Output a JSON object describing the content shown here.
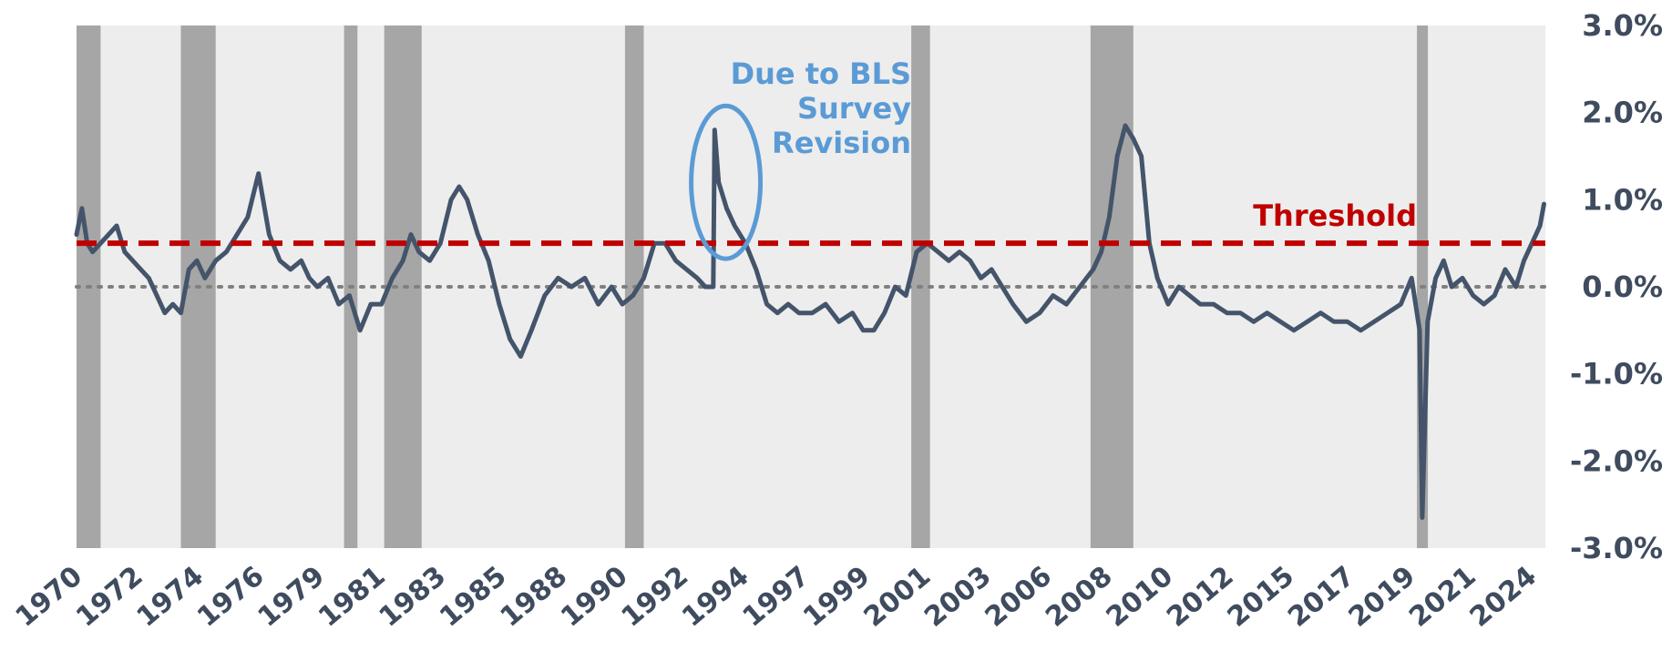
{
  "chart_data": {
    "type": "line",
    "title": "",
    "xlabel": "",
    "ylabel": "",
    "ylim": [
      -3.0,
      3.0
    ],
    "xlim": [
      1970.0,
      2024.9
    ],
    "y_ticks": [
      "3.0%",
      "2.0%",
      "1.0%",
      "0.0%",
      "-1.0%",
      "-2.0%",
      "-3.0%"
    ],
    "y_tick_values": [
      3.0,
      2.0,
      1.0,
      0.0,
      -1.0,
      -2.0,
      -3.0
    ],
    "x_ticks": [
      "1970",
      "1972",
      "1974",
      "1976",
      "1979",
      "1981",
      "1983",
      "1985",
      "1988",
      "1990",
      "1992",
      "1994",
      "1997",
      "1999",
      "2001",
      "2003",
      "2006",
      "2008",
      "2010",
      "2012",
      "2015",
      "2017",
      "2019",
      "2021",
      "2024"
    ],
    "threshold": {
      "value": 0.5,
      "label": "Threshold",
      "color": "#c00000"
    },
    "zero_line": {
      "value": 0.0,
      "color": "#808080"
    },
    "annotation": {
      "lines": [
        "Due to BLS",
        "Survey",
        "Revision"
      ],
      "x": 1994.2,
      "y": 1.2,
      "color": "#5b9bd5"
    },
    "recessions": [
      [
        1970.0,
        1970.9
      ],
      [
        1973.9,
        1975.2
      ],
      [
        1980.0,
        1980.5
      ],
      [
        1981.5,
        1982.9
      ],
      [
        1990.5,
        1991.2
      ],
      [
        2001.2,
        2001.9
      ],
      [
        2007.9,
        2009.5
      ],
      [
        2020.1,
        2020.3
      ]
    ],
    "colors": {
      "series": "#44546a",
      "recession": "#a6a6a6",
      "plot_bg": "#ededed",
      "axis_text": "#3f4b5e"
    },
    "series": [
      {
        "x": [
          1970.0,
          1970.2,
          1970.4,
          1970.6,
          1970.9,
          1971.2,
          1971.5,
          1971.8,
          1972.1,
          1972.4,
          1972.7,
          1973.0,
          1973.3,
          1973.6,
          1973.9,
          1974.2,
          1974.5,
          1974.8,
          1975.0,
          1975.2,
          1975.6,
          1976.0,
          1976.4,
          1976.8,
          1977.2,
          1977.6,
          1978.0,
          1978.4,
          1978.7,
          1979.0,
          1979.4,
          1979.8,
          1980.2,
          1980.6,
          1981.0,
          1981.4,
          1981.8,
          1982.2,
          1982.5,
          1982.8,
          1983.2,
          1983.6,
          1984.0,
          1984.3,
          1984.6,
          1985.0,
          1985.4,
          1985.8,
          1986.2,
          1986.6,
          1987.0,
          1987.5,
          1988.0,
          1988.5,
          1989.0,
          1989.5,
          1990.0,
          1990.4,
          1990.8,
          1991.2,
          1991.6,
          1992.0,
          1992.4,
          1992.8,
          1993.2,
          1993.5,
          1993.8,
          1993.85,
          1994.0,
          1994.3,
          1994.6,
          1995.0,
          1995.4,
          1995.8,
          1996.2,
          1996.6,
          1997.0,
          1997.5,
          1998.0,
          1998.5,
          1999.0,
          1999.4,
          1999.8,
          2000.2,
          2000.6,
          2001.0,
          2001.4,
          2001.8,
          2002.2,
          2002.6,
          2003.0,
          2003.4,
          2003.8,
          2004.2,
          2004.6,
          2005.0,
          2005.5,
          2006.0,
          2006.5,
          2007.0,
          2007.5,
          2008.0,
          2008.3,
          2008.6,
          2008.9,
          2009.2,
          2009.5,
          2009.8,
          2010.1,
          2010.4,
          2010.8,
          2011.2,
          2011.6,
          2012.0,
          2012.5,
          2013.0,
          2013.5,
          2014.0,
          2014.5,
          2015.0,
          2015.5,
          2016.0,
          2016.5,
          2017.0,
          2017.5,
          2018.0,
          2018.5,
          2019.0,
          2019.5,
          2019.9,
          2020.2,
          2020.3,
          2020.5,
          2020.8,
          2021.1,
          2021.4,
          2021.8,
          2022.2,
          2022.6,
          2023.0,
          2023.4,
          2023.8,
          2024.1,
          2024.4,
          2024.7,
          2024.85
        ],
        "y": [
          0.6,
          0.9,
          0.5,
          0.4,
          0.5,
          0.6,
          0.7,
          0.4,
          0.3,
          0.2,
          0.1,
          -0.1,
          -0.3,
          -0.2,
          -0.3,
          0.2,
          0.3,
          0.1,
          0.2,
          0.3,
          0.4,
          0.6,
          0.8,
          1.3,
          0.6,
          0.3,
          0.2,
          0.3,
          0.1,
          0.0,
          0.1,
          -0.2,
          -0.1,
          -0.5,
          -0.2,
          -0.2,
          0.1,
          0.3,
          0.6,
          0.4,
          0.3,
          0.5,
          1.0,
          1.15,
          1.0,
          0.6,
          0.3,
          -0.2,
          -0.6,
          -0.8,
          -0.5,
          -0.1,
          0.1,
          0.0,
          0.1,
          -0.2,
          0.0,
          -0.2,
          -0.1,
          0.1,
          0.5,
          0.5,
          0.3,
          0.2,
          0.1,
          0.0,
          0.0,
          1.8,
          1.2,
          0.9,
          0.7,
          0.5,
          0.2,
          -0.2,
          -0.3,
          -0.2,
          -0.3,
          -0.3,
          -0.2,
          -0.4,
          -0.3,
          -0.5,
          -0.5,
          -0.3,
          0.0,
          -0.1,
          0.4,
          0.5,
          0.4,
          0.3,
          0.4,
          0.3,
          0.1,
          0.2,
          0.0,
          -0.2,
          -0.4,
          -0.3,
          -0.1,
          -0.2,
          0.0,
          0.2,
          0.4,
          0.8,
          1.5,
          1.85,
          1.7,
          1.5,
          0.5,
          0.1,
          -0.2,
          0.0,
          -0.1,
          -0.2,
          -0.2,
          -0.3,
          -0.3,
          -0.4,
          -0.3,
          -0.4,
          -0.5,
          -0.4,
          -0.3,
          -0.4,
          -0.4,
          -0.5,
          -0.4,
          -0.3,
          -0.2,
          0.1,
          -0.5,
          -2.65,
          -0.4,
          0.1,
          0.3,
          0.0,
          0.1,
          -0.1,
          -0.2,
          -0.1,
          0.2,
          0.0,
          0.3,
          0.5,
          0.7,
          0.95
        ]
      }
    ]
  }
}
